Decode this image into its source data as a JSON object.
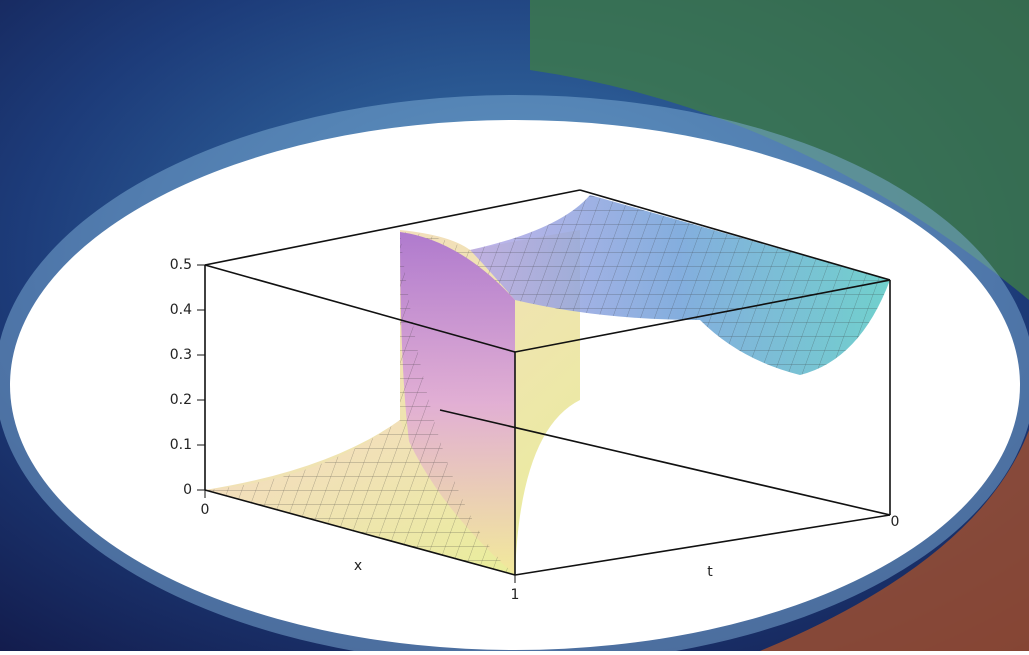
{
  "chart_data": {
    "type": "surface",
    "zlim": [
      0,
      0.5
    ],
    "zticks": [
      0,
      0.1,
      0.2,
      0.3,
      0.4,
      0.5
    ],
    "xlim": [
      0,
      1
    ],
    "xticks": [
      0,
      1
    ],
    "xlabel": "x",
    "tticks": [
      0
    ],
    "tlabel": "t",
    "box_color": "#111111"
  }
}
